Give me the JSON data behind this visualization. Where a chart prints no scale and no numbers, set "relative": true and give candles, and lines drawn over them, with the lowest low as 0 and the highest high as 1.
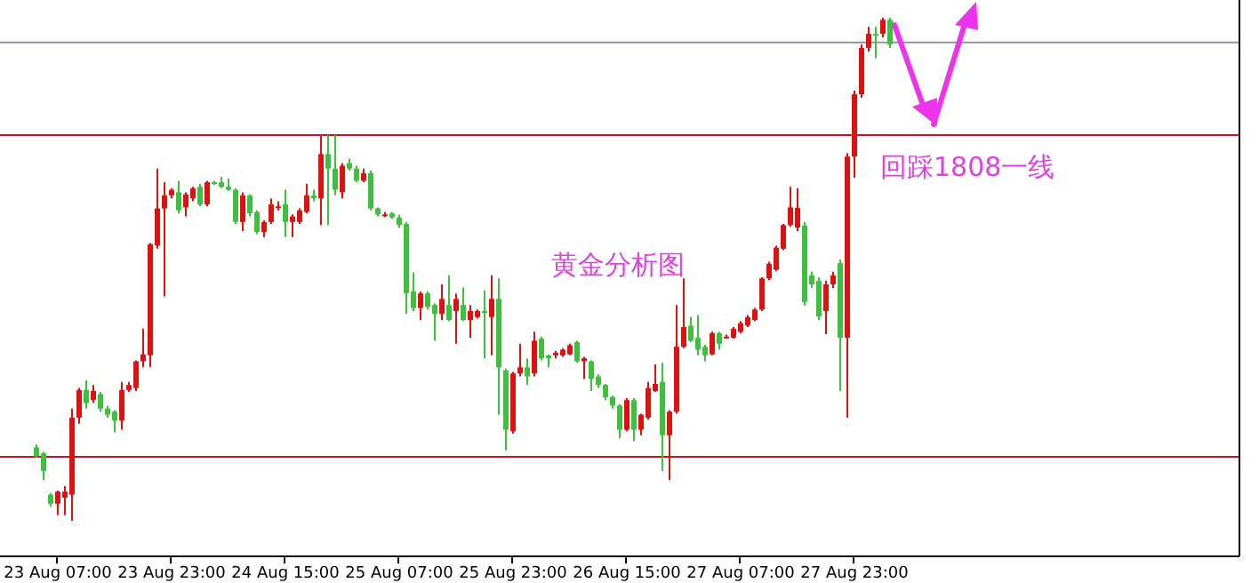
{
  "chart_data": {
    "type": "candlestick",
    "relative": true,
    "categories": [
      null,
      null,
      null,
      "23 Aug 07:00",
      null,
      null,
      null,
      null,
      null,
      null,
      null,
      null,
      null,
      null,
      null,
      null,
      null,
      null,
      null,
      "23 Aug 23:00",
      null,
      null,
      null,
      null,
      null,
      null,
      null,
      null,
      null,
      null,
      null,
      null,
      null,
      null,
      null,
      "24 Aug 15:00",
      null,
      null,
      null,
      null,
      null,
      null,
      null,
      null,
      null,
      null,
      null,
      null,
      null,
      null,
      null,
      "25 Aug 07:00",
      null,
      null,
      null,
      null,
      null,
      null,
      null,
      null,
      null,
      null,
      null,
      null,
      null,
      null,
      null,
      "25 Aug 23:00",
      null,
      null,
      null,
      null,
      null,
      null,
      null,
      null,
      null,
      null,
      null,
      null,
      null,
      null,
      null,
      "26 Aug 15:00",
      null,
      null,
      null,
      null,
      null,
      null,
      null,
      null,
      null,
      null,
      null,
      null,
      null,
      null,
      null,
      "27 Aug 07:00",
      null,
      null,
      null,
      null,
      null,
      null,
      null,
      null,
      null,
      null,
      null,
      null,
      null,
      null,
      null,
      "27 Aug 23:00",
      null,
      null,
      null,
      null,
      null
    ],
    "ohlc": [
      [
        0.146,
        0.152,
        0.126,
        0.128
      ],
      [
        0.134,
        0.137,
        0.081,
        0.099
      ],
      [
        0.052,
        0.055,
        0.028,
        0.034
      ],
      [
        0.034,
        0.06,
        0.011,
        0.058
      ],
      [
        0.046,
        0.069,
        0.011,
        0.058
      ],
      [
        0.052,
        0.223,
        0,
        0.205
      ],
      [
        0.205,
        0.264,
        0.193,
        0.26
      ],
      [
        0.26,
        0.279,
        0.223,
        0.234
      ],
      [
        0.24,
        0.27,
        0.234,
        0.258
      ],
      [
        0.252,
        0.256,
        0.217,
        0.223
      ],
      [
        0.223,
        0.229,
        0.205,
        0.211
      ],
      [
        0.217,
        0.22,
        0.176,
        0.199
      ],
      [
        0.199,
        0.276,
        0.181,
        0.26
      ],
      [
        0.26,
        0.276,
        0.256,
        0.27
      ],
      [
        0.264,
        0.319,
        0.258,
        0.317
      ],
      [
        0.317,
        0.382,
        0.305,
        0.331
      ],
      [
        0.329,
        0.552,
        0.305,
        0.55
      ],
      [
        0.547,
        0.7,
        0.541,
        0.621
      ],
      [
        0.621,
        0.673,
        0.446,
        0.647
      ],
      [
        0.647,
        0.661,
        0.641,
        0.658
      ],
      [
        0.653,
        0.676,
        0.611,
        0.617
      ],
      [
        0.623,
        0.653,
        0.605,
        0.649
      ],
      [
        0.641,
        0.664,
        0.635,
        0.661
      ],
      [
        0.664,
        0.67,
        0.625,
        0.629
      ],
      [
        0.629,
        0.676,
        0.625,
        0.673
      ],
      [
        0.673,
        0.676,
        0.668,
        0.67
      ],
      [
        0.673,
        0.684,
        0.661,
        0.664
      ],
      [
        0.664,
        0.68,
        0.656,
        0.658
      ],
      [
        0.658,
        0.661,
        0.59,
        0.594
      ],
      [
        0.594,
        0.653,
        0.576,
        0.647
      ],
      [
        0.647,
        0.649,
        0.605,
        0.611
      ],
      [
        0.614,
        0.617,
        0.57,
        0.574
      ],
      [
        0.574,
        0.597,
        0.564,
        0.594
      ],
      [
        0.594,
        0.641,
        0.59,
        0.629
      ],
      [
        0.625,
        0.635,
        0.617,
        0.625
      ],
      [
        0.629,
        0.658,
        0.564,
        0.594
      ],
      [
        0.594,
        0.609,
        0.564,
        0.605
      ],
      [
        0.594,
        0.621,
        0.59,
        0.617
      ],
      [
        0.614,
        0.67,
        0.611,
        0.647
      ],
      [
        0.647,
        0.658,
        0.635,
        0.641
      ],
      [
        0.641,
        0.767,
        0.588,
        0.729
      ],
      [
        0.729,
        0.767,
        0.588,
        0.7
      ],
      [
        0.7,
        0.767,
        0.647,
        0.658
      ],
      [
        0.653,
        0.711,
        0.641,
        0.706
      ],
      [
        0.711,
        0.72,
        0.696,
        0.7
      ],
      [
        0.7,
        0.706,
        0.673,
        0.676
      ],
      [
        0.676,
        0.7,
        0.673,
        0.691
      ],
      [
        0.691,
        0.696,
        0.617,
        0.621
      ],
      [
        0.621,
        0.623,
        0.605,
        0.609
      ],
      [
        0.609,
        0.614,
        0.604,
        0.609
      ],
      [
        0.611,
        0.614,
        0.6,
        0.603
      ],
      [
        0.603,
        0.608,
        0.582,
        0.588
      ],
      [
        0.59,
        0.594,
        0.411,
        0.452
      ],
      [
        0.456,
        0.494,
        0.417,
        0.423
      ],
      [
        0.423,
        0.456,
        0.399,
        0.452
      ],
      [
        0.452,
        0.456,
        0.42,
        0.425
      ],
      [
        0.429,
        0.432,
        0.358,
        0.411
      ],
      [
        0.411,
        0.47,
        0.399,
        0.441
      ],
      [
        0.429,
        0.488,
        0.397,
        0.399
      ],
      [
        0.417,
        0.452,
        0.352,
        0.441
      ],
      [
        0.429,
        0.464,
        0.397,
        0.399
      ],
      [
        0.399,
        0.429,
        0.364,
        0.417
      ],
      [
        0.405,
        0.42,
        0.402,
        0.417
      ],
      [
        0.417,
        0.458,
        0.323,
        0.413
      ],
      [
        0.405,
        0.488,
        0.329,
        0.441
      ],
      [
        0.441,
        0.482,
        0.211,
        0.305
      ],
      [
        0.299,
        0.303,
        0.14,
        0.181
      ],
      [
        0.178,
        0.296,
        0.173,
        0.293
      ],
      [
        0.293,
        0.352,
        0.287,
        0.305
      ],
      [
        0.305,
        0.323,
        0.27,
        0.287
      ],
      [
        0.293,
        0.376,
        0.287,
        0.358
      ],
      [
        0.362,
        0.366,
        0.319,
        0.323
      ],
      [
        0.329,
        0.331,
        0.305,
        0.323
      ],
      [
        0.329,
        0.338,
        0.323,
        0.334
      ],
      [
        0.329,
        0.343,
        0.326,
        0.34
      ],
      [
        0.331,
        0.352,
        0.329,
        0.349
      ],
      [
        0.355,
        0.358,
        0.314,
        0.317
      ],
      [
        0.317,
        0.326,
        0.282,
        0.323
      ],
      [
        0.317,
        0.319,
        0.258,
        0.282
      ],
      [
        0.287,
        0.291,
        0.264,
        0.27
      ],
      [
        0.27,
        0.272,
        0.24,
        0.246
      ],
      [
        0.246,
        0.249,
        0.223,
        0.229
      ],
      [
        0.229,
        0.232,
        0.164,
        0.181
      ],
      [
        0.181,
        0.244,
        0.178,
        0.24
      ],
      [
        0.24,
        0.244,
        0.158,
        0.181
      ],
      [
        0.181,
        0.213,
        0.17,
        0.211
      ],
      [
        0.205,
        0.276,
        0.201,
        0.264
      ],
      [
        0.258,
        0.311,
        0.256,
        0.272
      ],
      [
        0.276,
        0.314,
        0.099,
        0.17
      ],
      [
        0.17,
        0.22,
        0.081,
        0.217
      ],
      [
        0.217,
        0.429,
        0.213,
        0.346
      ],
      [
        0.346,
        0.482,
        0.343,
        0.385
      ],
      [
        0.388,
        0.405,
        0.355,
        0.358
      ],
      [
        0.364,
        0.409,
        0.329,
        0.34
      ],
      [
        0.346,
        0.35,
        0.317,
        0.329
      ],
      [
        0.331,
        0.376,
        0.329,
        0.373
      ],
      [
        0.373,
        0.376,
        0.34,
        0.352
      ],
      [
        0.366,
        0.37,
        0.362,
        0.366
      ],
      [
        0.364,
        0.385,
        0.362,
        0.382
      ],
      [
        0.376,
        0.397,
        0.373,
        0.393
      ],
      [
        0.388,
        0.409,
        0.385,
        0.405
      ],
      [
        0.399,
        0.423,
        0.397,
        0.42
      ],
      [
        0.42,
        0.484,
        0.417,
        0.482
      ],
      [
        0.482,
        0.515,
        0.479,
        0.511
      ],
      [
        0.499,
        0.547,
        0.496,
        0.543
      ],
      [
        0.541,
        0.59,
        0.538,
        0.588
      ],
      [
        0.588,
        0.664,
        0.585,
        0.623
      ],
      [
        0.583,
        0.661,
        0.576,
        0.622
      ],
      [
        0.587,
        0.594,
        0.428,
        0.435
      ],
      [
        0.488,
        0.495,
        0.463,
        0.47
      ],
      [
        0.477,
        0.484,
        0.399,
        0.406
      ],
      [
        0.417,
        0.477,
        0.371,
        0.47
      ],
      [
        0.47,
        0.495,
        0.463,
        0.488
      ],
      [
        0.512,
        0.519,
        0.258,
        0.364
      ],
      [
        0.364,
        0.731,
        0.205,
        0.724
      ],
      [
        0.724,
        0.855,
        0.682,
        0.848
      ],
      [
        0.848,
        0.947,
        0.841,
        0.94
      ],
      [
        0.94,
        0.982,
        0.933,
        0.968
      ],
      [
        0.968,
        0.982,
        0.919,
        0.965
      ],
      [
        0.968,
        1,
        0.961,
        0.996
      ],
      [
        0.996,
        1,
        0.94,
        0.947
      ]
    ],
    "ref_lines": [
      {
        "axis": "y",
        "value": 0.951,
        "color": "#8a96a3"
      },
      {
        "axis": "y",
        "value": 0.767,
        "color": "#cc1122"
      },
      {
        "axis": "y",
        "value": 0.127,
        "color": "#cc1122"
      }
    ],
    "annotations": [
      "回踩1808一线",
      "黄金分析图"
    ]
  }
}
